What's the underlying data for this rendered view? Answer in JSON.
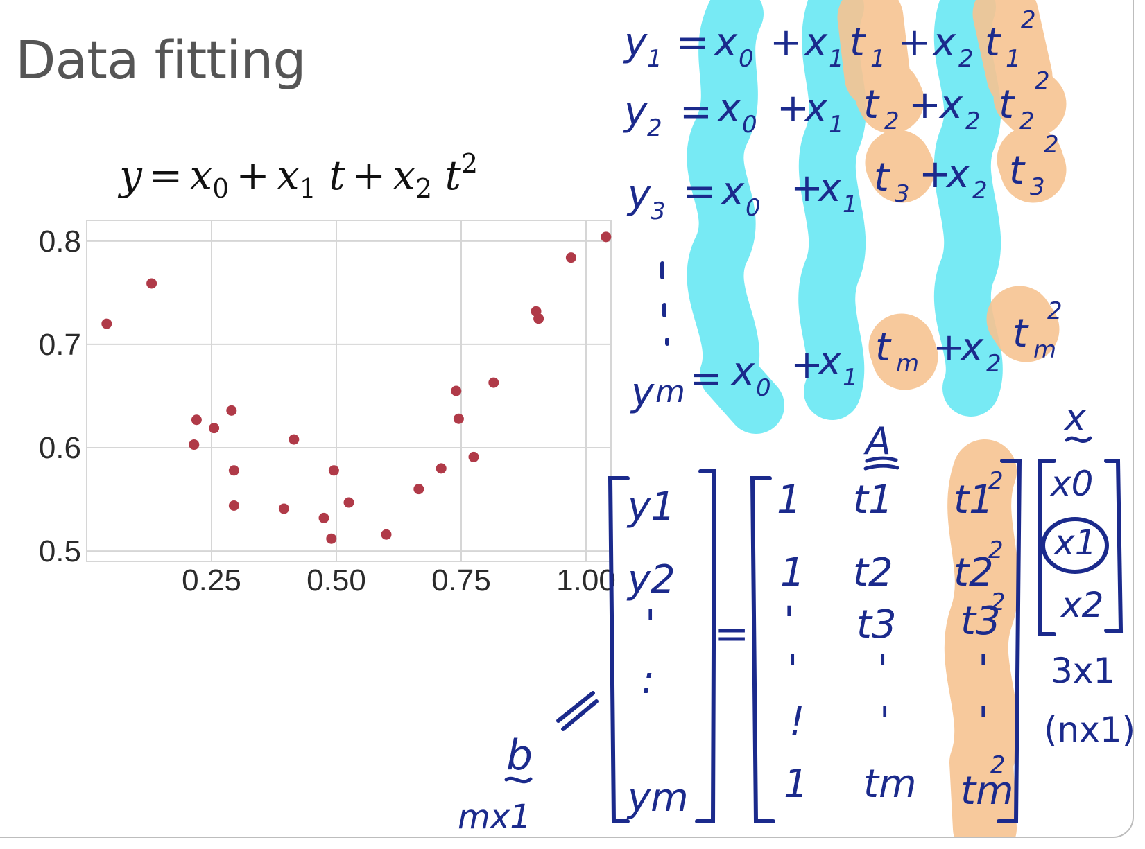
{
  "slide": {
    "title": "Data fitting",
    "formula": {
      "lhs": "y",
      "eq": "=",
      "x0": "x",
      "x0_sub": "0",
      "plus1": "+",
      "x1": "x",
      "x1_sub": "1",
      "t1": "t",
      "plus2": "+",
      "x2": "x",
      "x2_sub": "2",
      "t2": "t",
      "t2_sup": "2"
    }
  },
  "chart_data": {
    "type": "scatter",
    "title": "",
    "xlabel": "",
    "ylabel": "",
    "xlim": [
      0.0,
      1.05
    ],
    "ylim": [
      0.49,
      0.82
    ],
    "grid": true,
    "marker_color": "#b03a48",
    "x_ticks": [
      {
        "value": 0.25,
        "label": "0.25"
      },
      {
        "value": 0.5,
        "label": "0.50"
      },
      {
        "value": 0.75,
        "label": "0.75"
      },
      {
        "value": 1.0,
        "label": "1.00"
      }
    ],
    "y_ticks": [
      {
        "value": 0.5,
        "label": "0.5"
      },
      {
        "value": 0.6,
        "label": "0.6"
      },
      {
        "value": 0.7,
        "label": "0.7"
      },
      {
        "value": 0.8,
        "label": "0.8"
      }
    ],
    "points": [
      {
        "x": 0.04,
        "y": 0.72
      },
      {
        "x": 0.13,
        "y": 0.759
      },
      {
        "x": 0.215,
        "y": 0.603
      },
      {
        "x": 0.22,
        "y": 0.627
      },
      {
        "x": 0.255,
        "y": 0.619
      },
      {
        "x": 0.29,
        "y": 0.636
      },
      {
        "x": 0.295,
        "y": 0.578
      },
      {
        "x": 0.295,
        "y": 0.544
      },
      {
        "x": 0.395,
        "y": 0.541
      },
      {
        "x": 0.415,
        "y": 0.608
      },
      {
        "x": 0.475,
        "y": 0.532
      },
      {
        "x": 0.49,
        "y": 0.512
      },
      {
        "x": 0.495,
        "y": 0.578
      },
      {
        "x": 0.525,
        "y": 0.547
      },
      {
        "x": 0.6,
        "y": 0.516
      },
      {
        "x": 0.665,
        "y": 0.56
      },
      {
        "x": 0.71,
        "y": 0.58
      },
      {
        "x": 0.74,
        "y": 0.655
      },
      {
        "x": 0.745,
        "y": 0.628
      },
      {
        "x": 0.775,
        "y": 0.591
      },
      {
        "x": 0.815,
        "y": 0.663
      },
      {
        "x": 0.9,
        "y": 0.732
      },
      {
        "x": 0.905,
        "y": 0.725
      },
      {
        "x": 0.97,
        "y": 0.784
      },
      {
        "x": 1.04,
        "y": 0.804
      }
    ]
  },
  "annotations": {
    "eq_rows": [
      {
        "lhs": "y",
        "lhs_sub": "1",
        "x0": "x",
        "x0_sub": "0",
        "x1": "x",
        "x1_sub": "1",
        "t1": "t",
        "t1_sub": "1",
        "x2": "x",
        "x2_sub": "2",
        "t2": "t",
        "t2_sub": "1",
        "t2_sup": "2"
      },
      {
        "lhs": "y",
        "lhs_sub": "2",
        "x0": "x",
        "x0_sub": "0",
        "x1": "x",
        "x1_sub": "1",
        "t1": "t",
        "t1_sub": "2",
        "x2": "x",
        "x2_sub": "2",
        "t2": "t",
        "t2_sub": "2",
        "t2_sup": "2"
      },
      {
        "lhs": "y",
        "lhs_sub": "3",
        "x0": "x",
        "x0_sub": "0",
        "x1": "x",
        "x1_sub": "1",
        "t1": "t",
        "t1_sub": "3",
        "x2": "x",
        "x2_sub": "2",
        "t2": "t",
        "t2_sub": "3",
        "t2_sup": "2"
      },
      {
        "lhs": "y",
        "lhs_sub": "m",
        "x0": "x",
        "x0_sub": "0",
        "x1": "x",
        "x1_sub": "1",
        "t1": "t",
        "t1_sub": "m",
        "x2": "x",
        "x2_sub": "2",
        "t2": "t",
        "t2_sub": "m",
        "t2_sup": "2"
      }
    ],
    "plus": "+",
    "eq": "=",
    "b_vector": [
      "y1",
      "y2",
      "'",
      ":",
      "ym"
    ],
    "b_label": "b",
    "b_dims": "mx1",
    "A_label": "A",
    "A_col1": [
      "1",
      "1",
      "'",
      "'",
      "!",
      "1"
    ],
    "A_col2": [
      "t1",
      "t2",
      "t3",
      "'",
      "'",
      "tm"
    ],
    "A_col3": [
      "t1",
      "t2",
      "t3",
      "'",
      "'",
      "tm"
    ],
    "A_col3_sup": "2",
    "x_label": "x",
    "x_vector": [
      "x0",
      "x1",
      "x2"
    ],
    "x_dims": "3x1",
    "x_dims_alt": "(nx1)"
  }
}
